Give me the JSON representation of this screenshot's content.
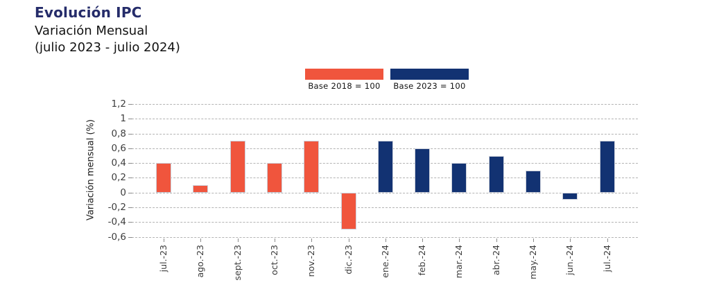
{
  "header": {
    "title": "Evolución IPC",
    "subtitle": "Variación Mensual",
    "period": "(julio 2023 - julio 2024)"
  },
  "legend": {
    "items": [
      {
        "label": "Base 2018 = 100",
        "color": "#f0553d"
      },
      {
        "label": "Base 2023 = 100",
        "color": "#123272"
      }
    ]
  },
  "chart_data": {
    "type": "bar",
    "title": "Evolución IPC",
    "subtitle": "Variación Mensual (julio 2023 - julio 2024)",
    "xlabel": "",
    "ylabel": "Variación mensual (%)",
    "ylim": [
      -0.6,
      1.2
    ],
    "ytick_values": [
      1.2,
      1,
      0.8,
      0.6,
      0.4,
      0.2,
      0,
      -0.2,
      -0.4,
      -0.6
    ],
    "ytick_labels": [
      "1,2",
      "1",
      "0,8",
      "0,6",
      "0,4",
      "0,2",
      "0",
      "-0,2",
      "-0,4",
      "-0,6"
    ],
    "grid": "horizontal-dashed",
    "legend_position": "top-center",
    "categories": [
      "jul.-23",
      "ago.-23",
      "sept.-23",
      "oct.-23",
      "nov.-23",
      "dic.-23",
      "ene.-24",
      "feb.-24",
      "mar.-24",
      "abr.-24",
      "may.-24",
      "jun.-24",
      "jul.-24"
    ],
    "series": [
      {
        "name": "Base 2018 = 100",
        "color": "#f0553d",
        "values": [
          0.4,
          0.1,
          0.7,
          0.4,
          0.7,
          -0.5,
          null,
          null,
          null,
          null,
          null,
          null,
          null
        ]
      },
      {
        "name": "Base 2023 = 100",
        "color": "#123272",
        "values": [
          null,
          null,
          null,
          null,
          null,
          null,
          0.7,
          0.6,
          0.4,
          0.5,
          0.3,
          -0.1,
          0.7
        ]
      }
    ]
  },
  "colors": {
    "title": "#252c6a",
    "body_text": "#121212",
    "axis_text": "#3d3d3d",
    "grid": "#b3b3b3"
  }
}
